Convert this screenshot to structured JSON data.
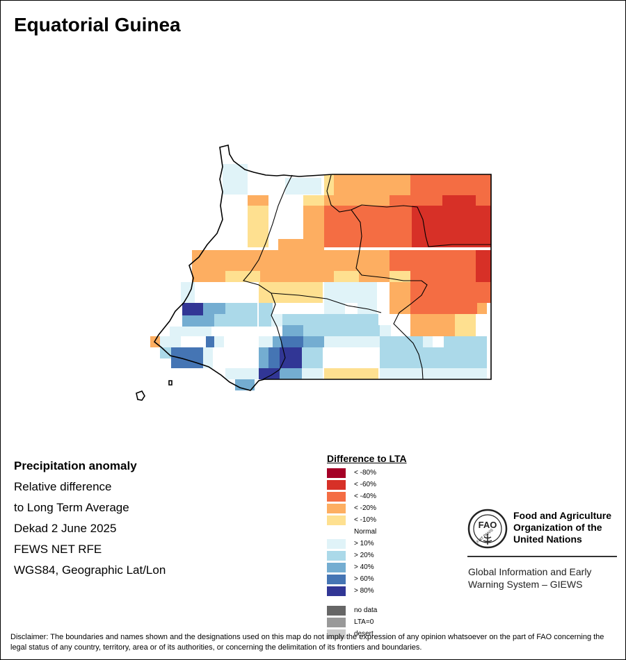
{
  "title": "Equatorial Guinea",
  "info": {
    "lines": [
      "Precipitation anomaly",
      "Relative difference",
      "to Long Term Average",
      "Dekad 2 June 2025",
      "FEWS NET RFE",
      "WGS84, Geographic Lat/Lon"
    ]
  },
  "legend": {
    "title": "Difference to LTA",
    "classes": [
      {
        "label": "< -80%",
        "color": "#a50026"
      },
      {
        "label": "< -60%",
        "color": "#d73027"
      },
      {
        "label": "< -40%",
        "color": "#f46d43"
      },
      {
        "label": "< -20%",
        "color": "#fdae61"
      },
      {
        "label": "< -10%",
        "color": "#fee090"
      },
      {
        "label": "Normal",
        "color": "#ffffff"
      },
      {
        "label": "> 10%",
        "color": "#e0f3f8"
      },
      {
        "label": "> 20%",
        "color": "#abd9e9"
      },
      {
        "label": "> 40%",
        "color": "#74add1"
      },
      {
        "label": "> 60%",
        "color": "#4575b4"
      },
      {
        "label": "> 80%",
        "color": "#313695"
      }
    ],
    "extra": [
      {
        "label": "no data",
        "color": "#666666"
      },
      {
        "label": "LTA=0",
        "color": "#999999"
      },
      {
        "label": "desert",
        "color": "#cccccc"
      }
    ]
  },
  "fao": {
    "name_lines": [
      "Food and Agriculture",
      "Organization of the",
      "United Nations"
    ],
    "emblem_text": "FAO",
    "motto": "FIAT PANIS",
    "giews_lines": [
      "Global Information and Early",
      "Warning System – GIEWS"
    ]
  },
  "disclaimer": "Disclaimer: The boundaries and names shown and the designations used on this map do not imply the expression of any opinion whatsoever on the part of FAO concerning the legal status of any country, territory, area or of its authorities, or concerning the delimitation of its frontiers and boundaries."
}
